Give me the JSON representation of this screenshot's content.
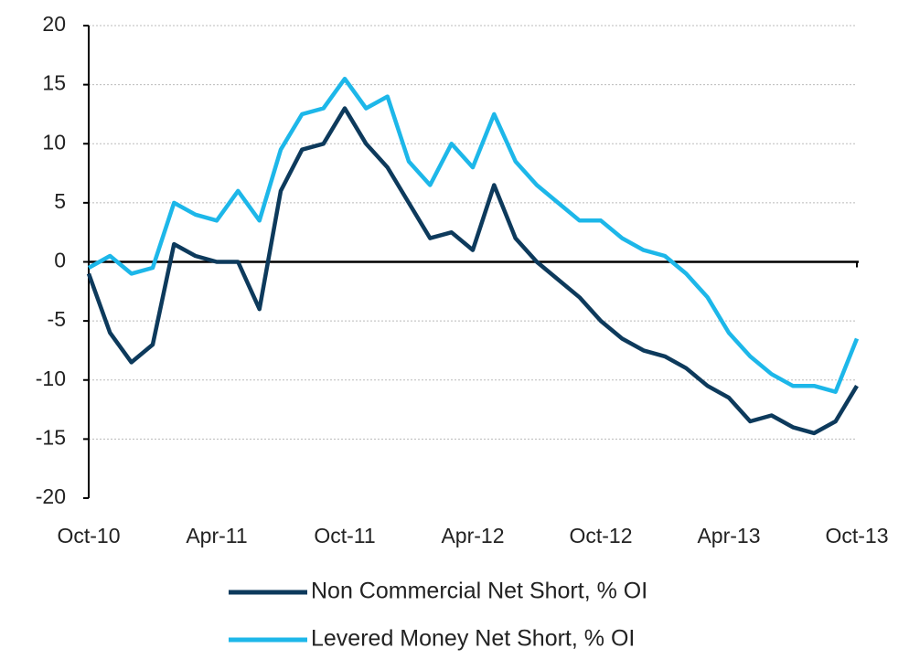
{
  "chart_data": {
    "type": "line",
    "categories": [
      "Oct-10",
      null,
      null,
      null,
      null,
      null,
      "Apr-11",
      null,
      null,
      null,
      null,
      null,
      "Oct-11",
      null,
      null,
      null,
      null,
      null,
      "Apr-12",
      null,
      null,
      null,
      null,
      null,
      "Oct-12",
      null,
      null,
      null,
      null,
      null,
      "Apr-13",
      null,
      null,
      null,
      null,
      null,
      "Oct-13"
    ],
    "series": [
      {
        "name": "Non Commercial Net Short, % OI",
        "color": "#0d3a5c",
        "values": [
          -1,
          -6,
          -8.5,
          -7,
          1.5,
          0.5,
          0,
          0,
          -4,
          6,
          9.5,
          10,
          13,
          10,
          8,
          5,
          2,
          2.5,
          1,
          6.5,
          2,
          0,
          -1.5,
          -3,
          -5,
          -6.5,
          -7.5,
          -8,
          -9,
          -10.5,
          -11.5,
          -13.5,
          -13,
          -14,
          -14.5,
          -13.5,
          -10.5
        ]
      },
      {
        "name": "Levered Money Net Short, % OI",
        "color": "#1db7e9",
        "values": [
          -0.5,
          0.5,
          -1,
          -0.5,
          5,
          4,
          3.5,
          6,
          3.5,
          9.5,
          12.5,
          13,
          15.5,
          13,
          14,
          8.5,
          6.5,
          10,
          8,
          12.5,
          8.5,
          6.5,
          5,
          3.5,
          3.5,
          2,
          1,
          0.5,
          -1,
          -3,
          -6,
          -8,
          -9.5,
          -10.5,
          -10.5,
          -11,
          -6.5
        ]
      }
    ],
    "ylim": [
      -20,
      20
    ],
    "yticks": [
      -20,
      -15,
      -10,
      -5,
      0,
      5,
      10,
      15,
      20
    ],
    "grid": true
  }
}
